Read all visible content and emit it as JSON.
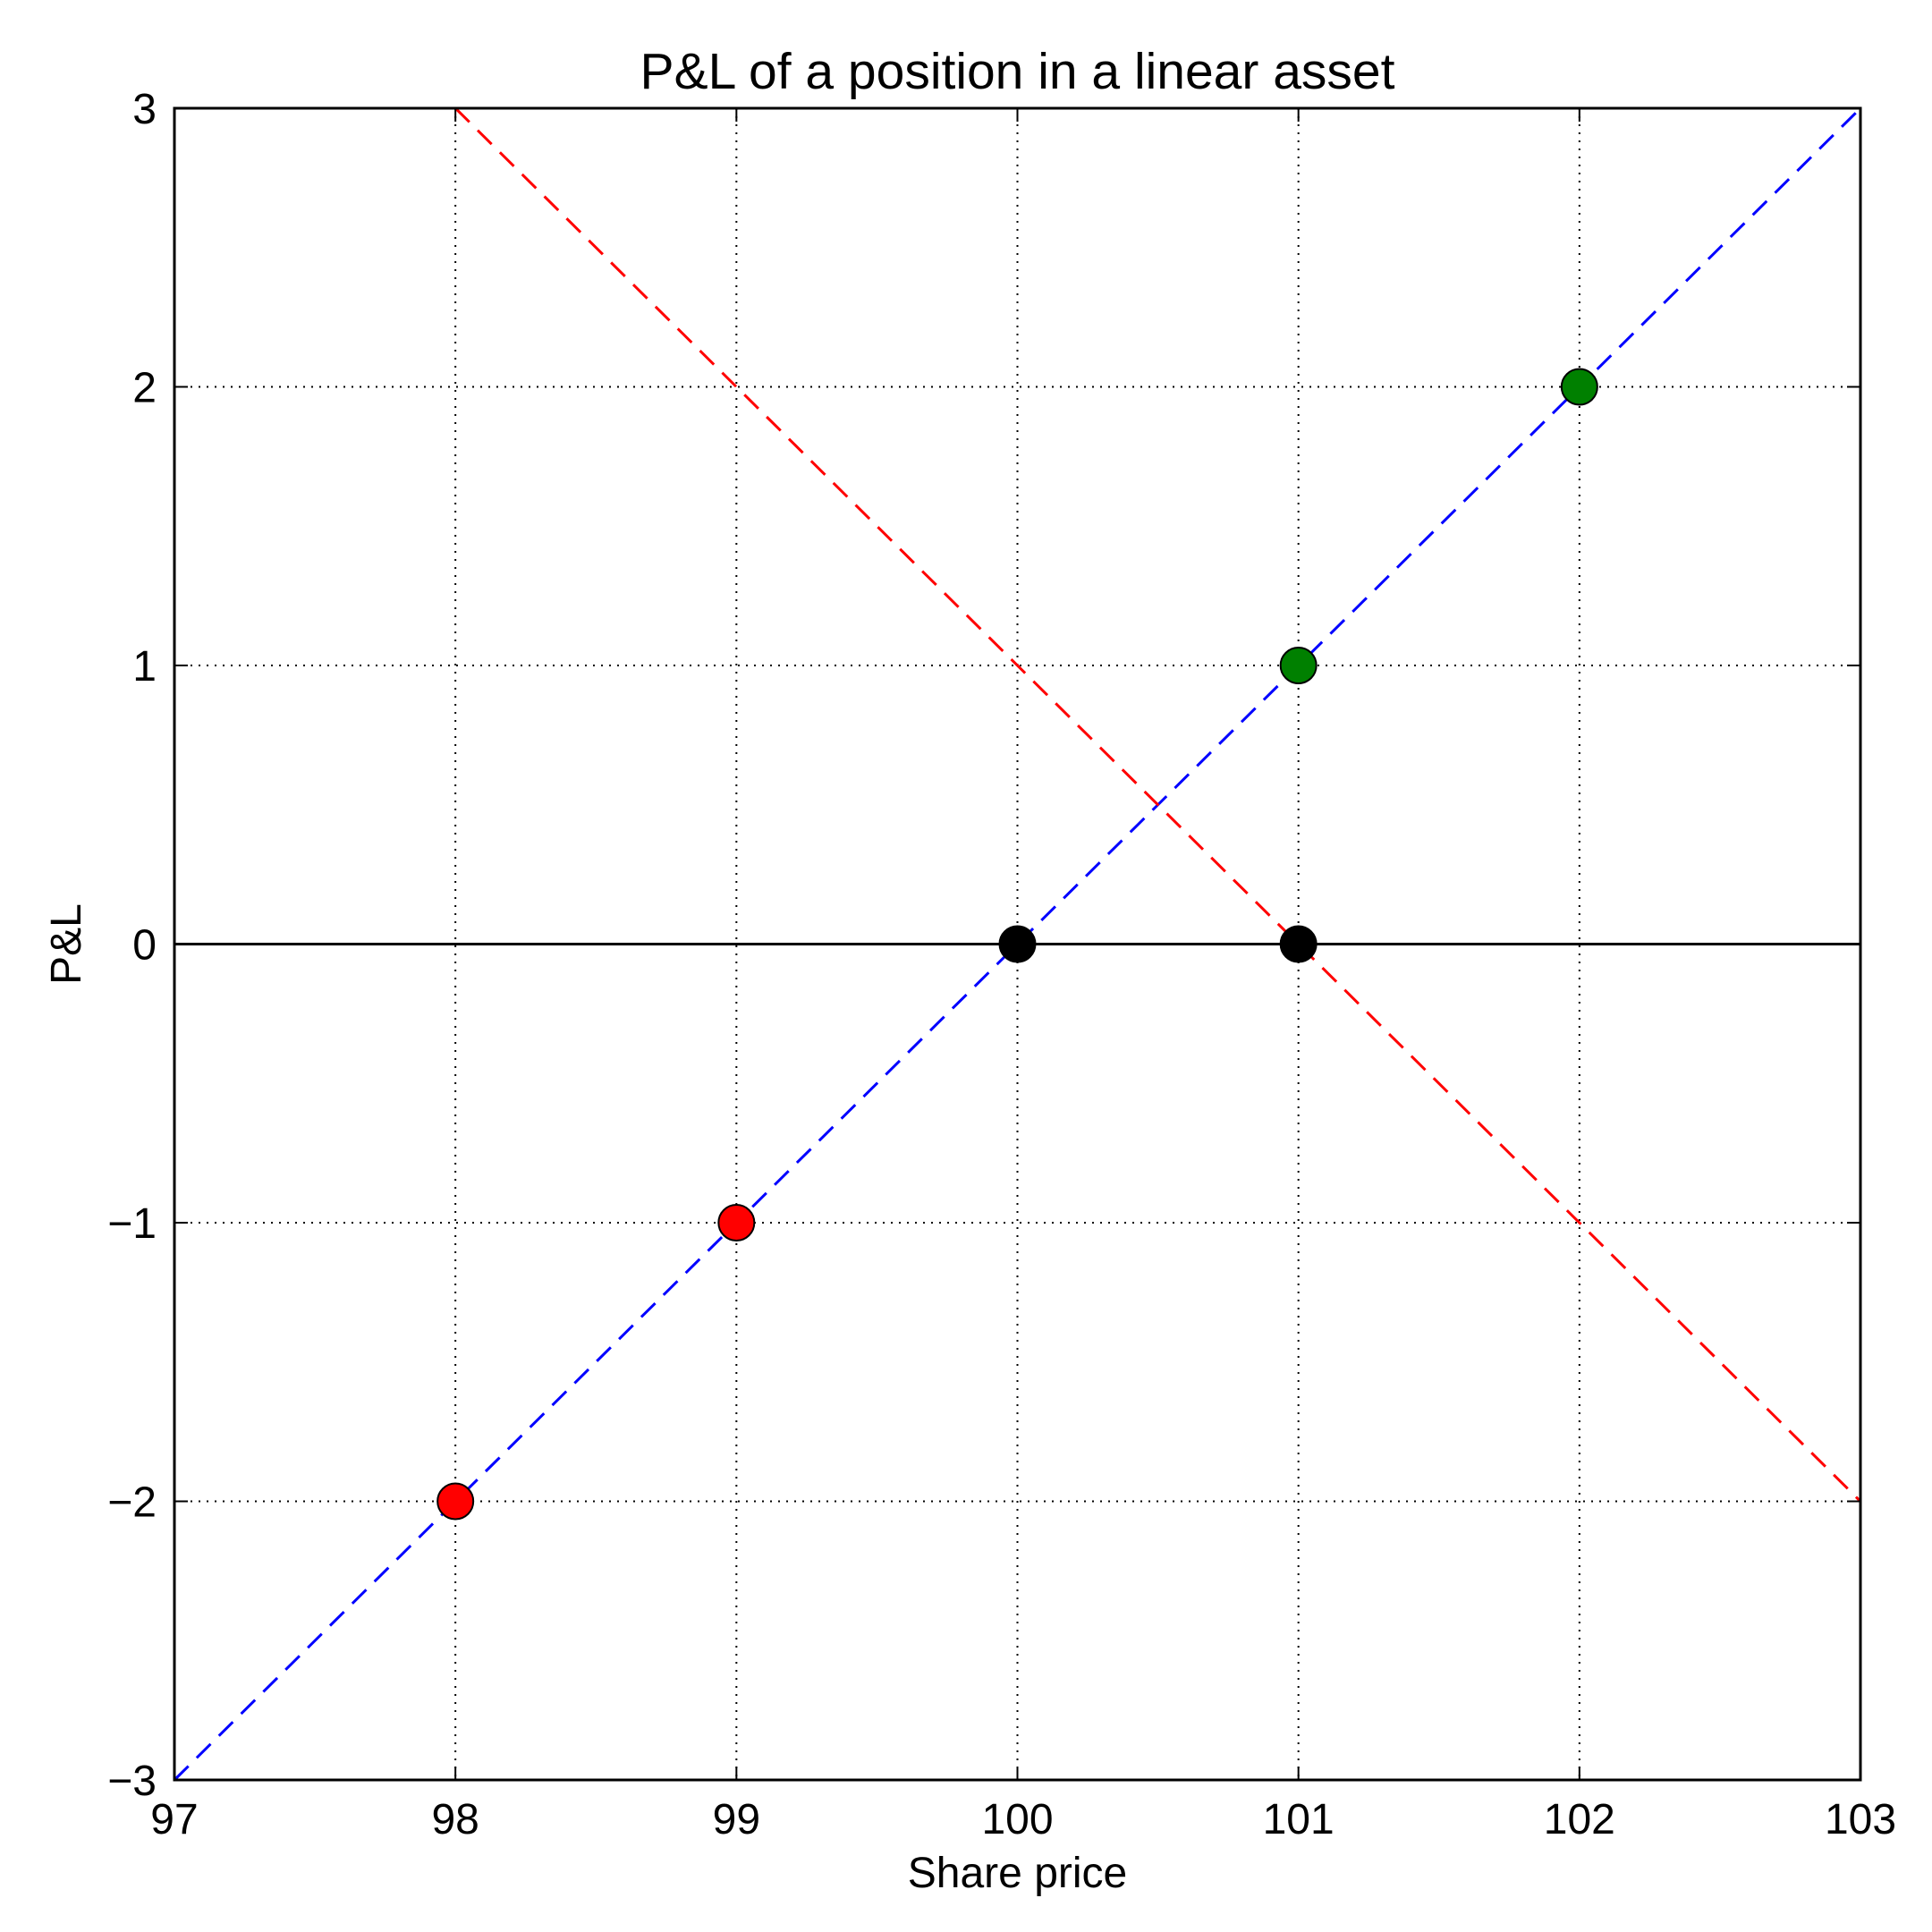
{
  "chart_data": {
    "type": "line",
    "title": "P&L of a position in a linear asset",
    "xlabel": "Share price",
    "ylabel": "P&L",
    "xlim": [
      97,
      103
    ],
    "ylim": [
      -3,
      3
    ],
    "xticks": [
      97,
      98,
      99,
      100,
      101,
      102,
      103
    ],
    "yticks": [
      -3,
      -2,
      -1,
      0,
      1,
      2,
      3
    ],
    "xtick_labels": [
      "97",
      "98",
      "99",
      "100",
      "101",
      "102",
      "103"
    ],
    "ytick_labels": [
      "−3",
      "−2",
      "−1",
      "0",
      "1",
      "2",
      "3"
    ],
    "grid": true,
    "lines": [
      {
        "style": "dashed",
        "color": "#0000ff",
        "x": [
          97,
          103
        ],
        "y": [
          -3,
          3
        ]
      },
      {
        "style": "dashed",
        "color": "#ff0000",
        "x": [
          98,
          103
        ],
        "y": [
          3,
          -2
        ]
      },
      {
        "style": "solid",
        "color": "#000000",
        "x": [
          97,
          103
        ],
        "y": [
          0,
          0
        ]
      }
    ],
    "points": [
      {
        "x": 98,
        "y": -2,
        "color": "#ff0000"
      },
      {
        "x": 99,
        "y": -1,
        "color": "#ff0000"
      },
      {
        "x": 100,
        "y": 0,
        "color": "#000000"
      },
      {
        "x": 101,
        "y": 0,
        "color": "#000000"
      },
      {
        "x": 101,
        "y": 1,
        "color": "#008000"
      },
      {
        "x": 102,
        "y": 2,
        "color": "#008000"
      }
    ]
  }
}
